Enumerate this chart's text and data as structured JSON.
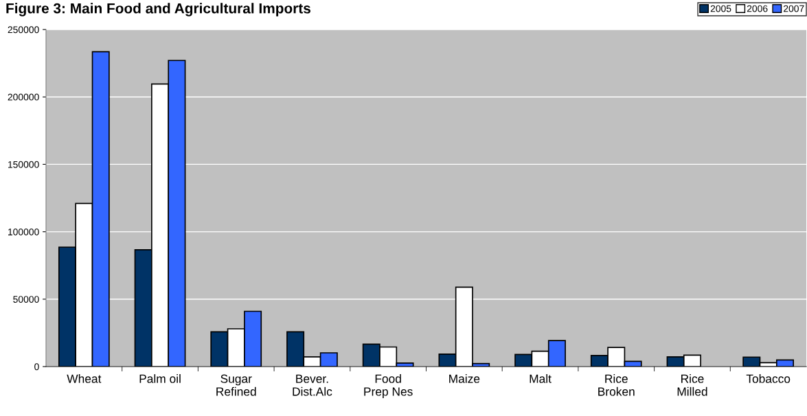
{
  "chart_data": {
    "type": "bar",
    "title": "Figure 3: Main Food and Agricultural Imports",
    "categories": [
      "Wheat",
      "Palm oil",
      "Sugar\nRefined",
      "Bever.\nDist.Alc",
      "Food\nPrep Nes",
      "Maize",
      "Malt",
      "Rice\nBroken",
      "Rice\nMilled",
      "Tobacco"
    ],
    "series": [
      {
        "name": "2005",
        "color": "#003366",
        "values": [
          88600,
          86600,
          25800,
          25800,
          16600,
          9200,
          9000,
          8200,
          7200,
          7000
        ]
      },
      {
        "name": "2006",
        "color": "#ffffff",
        "values": [
          121000,
          209600,
          28000,
          7200,
          14500,
          58900,
          11400,
          14200,
          8500,
          2900
        ]
      },
      {
        "name": "2007",
        "color": "#3366ff",
        "values": [
          233500,
          227100,
          41000,
          10200,
          2600,
          2200,
          19300,
          3900,
          null,
          4900
        ]
      }
    ],
    "ylim": [
      0,
      250000
    ],
    "yticks": [
      0,
      50000,
      100000,
      150000,
      200000,
      250000
    ],
    "grid": "y",
    "legend": "top right"
  }
}
